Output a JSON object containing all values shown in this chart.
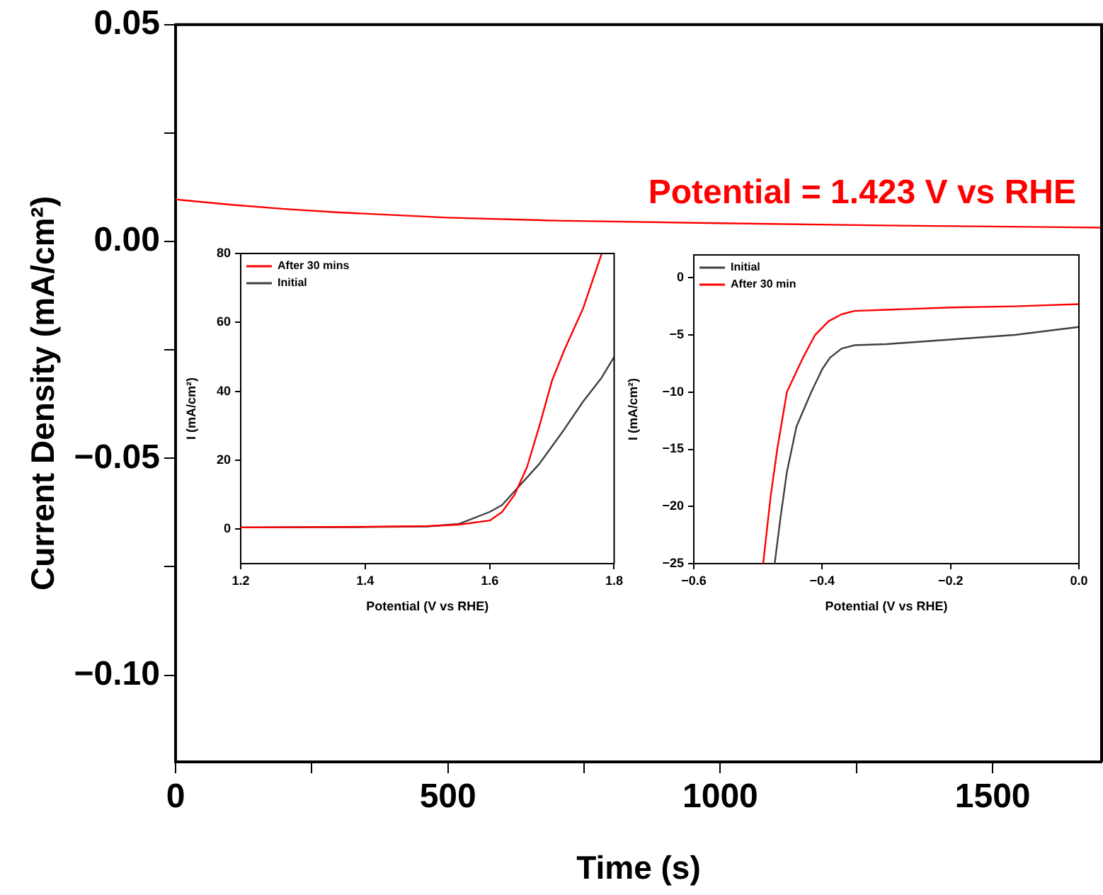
{
  "chart_data": [
    {
      "type": "line",
      "xlabel": "Time (s)",
      "ylabel": "Current Density (mA/cm²)",
      "marker": "none",
      "grid": false,
      "legend": false,
      "xlim": [
        0,
        1700
      ],
      "ylim": [
        -0.12,
        0.05
      ],
      "xticks": [
        0,
        {
          "value": 250,
          "label": null
        },
        500,
        {
          "value": 750,
          "label": null
        },
        1000,
        {
          "value": 1250,
          "label": null
        },
        1500
      ],
      "yticks": [
        {
          "value": -0.1,
          "label": "−0.10"
        },
        {
          "value": -0.075,
          "label": null
        },
        {
          "value": -0.05,
          "label": "−0.05"
        },
        {
          "value": -0.025,
          "label": null
        },
        {
          "value": 0,
          "label": "0.00"
        },
        {
          "value": 0.025,
          "label": null
        },
        {
          "value": 0.05,
          "label": "0.05"
        }
      ],
      "series": [
        {
          "name": "Potential = 1.423 V vs RHE",
          "color": "#ff0000",
          "x": [
            0,
            100,
            200,
            300,
            500,
            700,
            1000,
            1300,
            1700
          ],
          "values": [
            0.0097,
            0.0085,
            0.0075,
            0.0067,
            0.0055,
            0.0048,
            0.0042,
            0.0037,
            0.0032
          ]
        }
      ]
    },
    {
      "type": "line",
      "xlabel": "Potential (V vs RHE)",
      "ylabel": "I (mA/cm²)",
      "marker": "none",
      "grid": false,
      "legend": "top left",
      "xlim": [
        1.2,
        1.8
      ],
      "ylim": [
        -10,
        80
      ],
      "xticks": [
        1.2,
        1.4,
        1.6,
        1.8
      ],
      "yticks": [
        0,
        20,
        40,
        60,
        80
      ],
      "series": [
        {
          "name": "After 30 mins",
          "color": "#ff0000",
          "x": [
            1.2,
            1.4,
            1.5,
            1.55,
            1.6,
            1.62,
            1.64,
            1.66,
            1.68,
            1.7,
            1.72,
            1.75,
            1.78
          ],
          "values": [
            0.5,
            0.7,
            0.9,
            1.3,
            2.5,
            5,
            10,
            18,
            30,
            43,
            52,
            64,
            80
          ]
        },
        {
          "name": "Initial",
          "color": "#404040",
          "x": [
            1.2,
            1.4,
            1.5,
            1.55,
            1.6,
            1.62,
            1.64,
            1.66,
            1.68,
            1.7,
            1.72,
            1.75,
            1.78,
            1.8
          ],
          "values": [
            0.5,
            0.6,
            0.8,
            1.5,
            5,
            7,
            11,
            15,
            19,
            24,
            29,
            37,
            44,
            50
          ]
        }
      ]
    },
    {
      "type": "line",
      "xlabel": "Potential (V vs RHE)",
      "ylabel": "I (mA/cm²)",
      "marker": "none",
      "grid": false,
      "legend": "top left",
      "xlim": [
        -0.6,
        0
      ],
      "ylim": [
        -25,
        2
      ],
      "xticks": [
        {
          "value": -0.6,
          "label": "−0.6"
        },
        {
          "value": -0.4,
          "label": "−0.4"
        },
        {
          "value": -0.2,
          "label": "−0.2"
        },
        {
          "value": 0,
          "label": "0.0"
        }
      ],
      "yticks": [
        {
          "value": -25,
          "label": "−25"
        },
        {
          "value": -20,
          "label": "−20"
        },
        {
          "value": -15,
          "label": "−15"
        },
        {
          "value": -10,
          "label": "−10"
        },
        {
          "value": -5,
          "label": "−5"
        },
        0
      ],
      "series": [
        {
          "name": "Initial",
          "color": "#404040",
          "x": [
            -0.474,
            -0.465,
            -0.455,
            -0.44,
            -0.417,
            -0.4,
            -0.388,
            -0.37,
            -0.35,
            -0.3,
            -0.2,
            -0.1,
            0
          ],
          "values": [
            -25,
            -21,
            -17,
            -13,
            -10,
            -8,
            -7,
            -6.2,
            -5.9,
            -5.8,
            -5.4,
            -5,
            -4.3
          ]
        },
        {
          "name": "After 30 min",
          "color": "#ff0000",
          "x": [
            -0.492,
            -0.48,
            -0.47,
            -0.455,
            -0.43,
            -0.411,
            -0.39,
            -0.37,
            -0.35,
            -0.3,
            -0.2,
            -0.1,
            0
          ],
          "values": [
            -25,
            -19,
            -15,
            -10,
            -7,
            -5,
            -3.8,
            -3.2,
            -2.9,
            -2.8,
            -2.6,
            -2.5,
            -2.3
          ]
        }
      ]
    }
  ]
}
